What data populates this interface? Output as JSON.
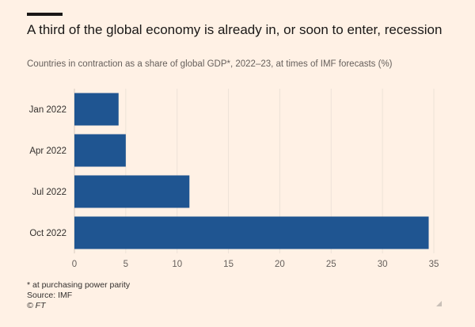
{
  "header": {
    "title": "A third of the global economy is already in, or soon to enter, recession",
    "subtitle": "Countries in contraction as a share of global GDP*, 2022–23, at times of IMF forecasts (%)"
  },
  "footer": {
    "note": "* at purchasing power parity",
    "source": "Source: IMF",
    "credit": "© FT"
  },
  "colors": {
    "bar": "#1f5591",
    "background": "#fff1e5",
    "grid": "#ede2d8"
  },
  "chart_data": {
    "type": "bar",
    "orientation": "horizontal",
    "categories": [
      "Jan 2022",
      "Apr 2022",
      "Jul 2022",
      "Oct 2022"
    ],
    "values": [
      4.3,
      5.0,
      11.2,
      34.5
    ],
    "xlim": [
      0,
      35
    ],
    "xticks": [
      0,
      5,
      10,
      15,
      20,
      25,
      30,
      35
    ],
    "grid": true,
    "legend": "none"
  }
}
